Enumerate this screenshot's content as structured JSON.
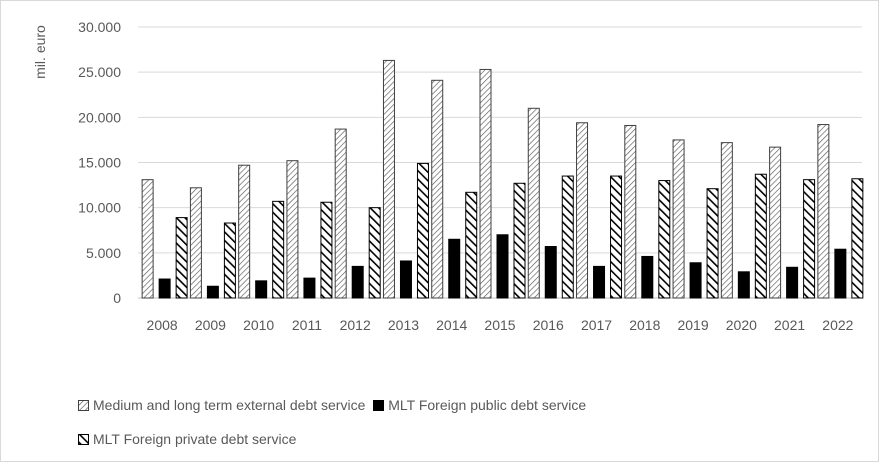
{
  "chart_data": {
    "type": "bar",
    "ylabel": "mil. euro",
    "xlabel": "",
    "ylim": [
      0,
      30000
    ],
    "yticks": [
      "0",
      "5.000",
      "10.000",
      "15.000",
      "20.000",
      "25.000",
      "30.000"
    ],
    "categories": [
      "2008",
      "2009",
      "2010",
      "2011",
      "2012",
      "2013",
      "2014",
      "2015",
      "2016",
      "2017",
      "2018",
      "2019",
      "2020",
      "2021",
      "2022"
    ],
    "series": [
      {
        "name": "Medium and long term external debt service",
        "pattern": "diagonal-hatch",
        "color": "#595959",
        "values": [
          13100,
          12200,
          14700,
          15200,
          18700,
          26300,
          24100,
          25300,
          21000,
          19400,
          19100,
          17500,
          17200,
          16700,
          19200
        ]
      },
      {
        "name": "MLT Foreign public debt service",
        "pattern": "solid",
        "color": "#000000",
        "values": [
          2100,
          1300,
          1900,
          2200,
          3500,
          4100,
          6500,
          7000,
          5700,
          3500,
          4600,
          3900,
          2900,
          3400,
          5400
        ]
      },
      {
        "name": "MLT Foreign private debt service",
        "pattern": "wide-diagonal",
        "color": "#000000",
        "values": [
          8900,
          8300,
          10700,
          10600,
          10000,
          14900,
          11700,
          12700,
          13500,
          13500,
          13000,
          12100,
          13700,
          13100,
          13200
        ]
      }
    ],
    "grid": true,
    "legend_position": "bottom"
  }
}
